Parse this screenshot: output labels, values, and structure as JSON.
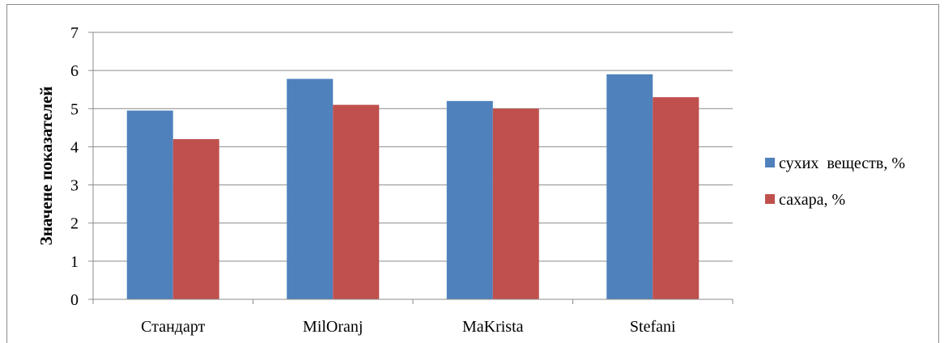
{
  "chart_data": {
    "type": "bar",
    "categories": [
      "Стандарт",
      "MilOranj",
      "MaKrista",
      "Stefani"
    ],
    "series": [
      {
        "name": "сухих  веществ, %",
        "color": "#4F81BD",
        "values": [
          4.95,
          5.78,
          5.2,
          5.9
        ]
      },
      {
        "name": "сахара, %",
        "color": "#C0504D",
        "values": [
          4.2,
          5.1,
          5.0,
          5.3
        ]
      }
    ],
    "title": "",
    "xlabel": "",
    "ylabel": "Значене показателей",
    "ylim": [
      0,
      7
    ],
    "yticks": [
      0,
      1,
      2,
      3,
      4,
      5,
      6,
      7
    ],
    "grid": true,
    "legend": "right"
  }
}
